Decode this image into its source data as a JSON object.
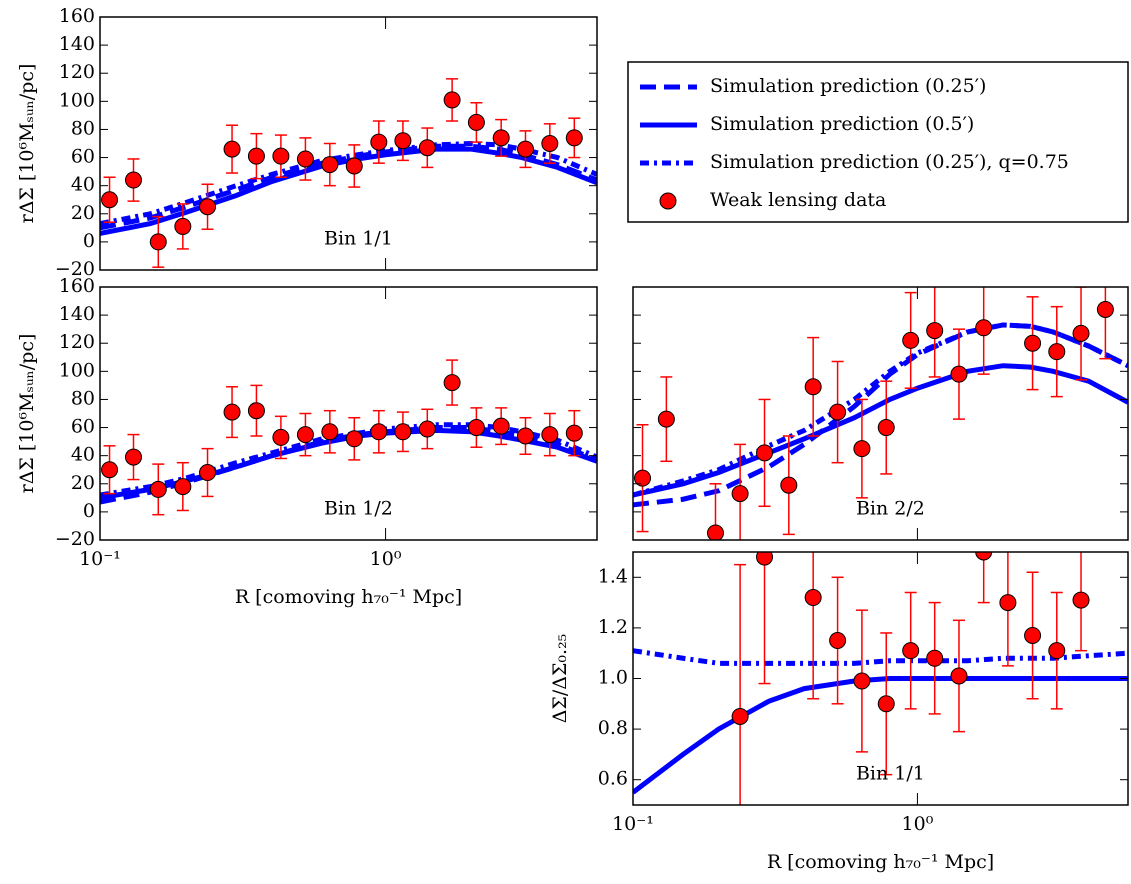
{
  "chart_data": [
    {
      "type": "line",
      "text": "Bin 1/1",
      "ylabel": "rΔΣ [10⁶Mₛᵤₙ/pc]",
      "log_x": true,
      "xlim": [
        0.1,
        5.5
      ],
      "xticks": [
        {
          "value": 0.1,
          "label": "10⁻¹"
        },
        {
          "value": 1,
          "label": "10⁰"
        }
      ],
      "show_xtick_labels": false,
      "ylim": [
        -20,
        160
      ],
      "yticks": [
        {
          "value": -20,
          "label": "−20"
        },
        0,
        20,
        40,
        60,
        80,
        100,
        120,
        140,
        160
      ],
      "show_ytick_labels": true,
      "series": [
        {
          "name": "Simulation prediction (0.25′)",
          "color": "#0000ff",
          "style": "dashed",
          "x": [
            0.1,
            0.15,
            0.2,
            0.3,
            0.4,
            0.6,
            0.8,
            1,
            1.5,
            2,
            2.5,
            3,
            4,
            5.5
          ],
          "values": [
            10,
            17,
            25,
            37,
            46,
            56,
            61,
            64,
            68,
            68,
            66,
            62,
            55,
            44
          ]
        },
        {
          "name": "Simulation prediction (0.5′)",
          "color": "#0000ff",
          "style": "solid",
          "x": [
            0.1,
            0.15,
            0.2,
            0.3,
            0.4,
            0.6,
            0.8,
            1,
            1.5,
            2,
            2.5,
            3,
            4,
            5.5
          ],
          "values": [
            6,
            13,
            21,
            33,
            43,
            54,
            59,
            62,
            66,
            66,
            63,
            60,
            53,
            42
          ]
        },
        {
          "name": "Simulation prediction (0.25′), q=0.75",
          "color": "#0000ff",
          "style": "dashdot",
          "x": [
            0.1,
            0.15,
            0.2,
            0.3,
            0.4,
            0.6,
            0.8,
            1,
            1.5,
            2,
            2.5,
            3,
            4,
            5.5
          ],
          "values": [
            13,
            20,
            28,
            40,
            48,
            58,
            62,
            65,
            69,
            70,
            69,
            66,
            60,
            48
          ]
        }
      ],
      "points": {
        "name": "Weak lensing data",
        "color": "#ff0000",
        "x": [
          0.108,
          0.131,
          0.16,
          0.195,
          0.238,
          0.29,
          0.353,
          0.43,
          0.524,
          0.638,
          0.777,
          0.947,
          1.15,
          1.4,
          1.71,
          2.08,
          2.54,
          3.09,
          3.76,
          4.58
        ],
        "values": [
          30,
          44,
          0,
          11,
          25,
          66,
          61,
          61,
          59,
          55,
          54,
          71,
          72,
          67,
          101,
          85,
          74,
          66,
          70,
          74
        ],
        "errors": [
          16,
          15,
          18,
          16,
          16,
          17,
          16,
          15,
          15,
          15,
          15,
          15,
          14,
          14,
          15,
          14,
          13,
          13,
          14,
          14
        ]
      }
    },
    {
      "type": "line",
      "text": "Bin 1/2",
      "ylabel": "rΔΣ [10⁶Mₛᵤₙ/pc]",
      "xlabel": "R [comoving h₇₀⁻¹ Mpc]",
      "log_x": true,
      "xlim": [
        0.1,
        5.5
      ],
      "xticks": [
        {
          "value": 0.1,
          "label": "10⁻¹"
        },
        {
          "value": 1,
          "label": "10⁰"
        }
      ],
      "show_xtick_labels": true,
      "ylim": [
        -20,
        160
      ],
      "yticks": [
        {
          "value": -20,
          "label": "−20"
        },
        0,
        20,
        40,
        60,
        80,
        100,
        120,
        140,
        160
      ],
      "show_ytick_labels": true,
      "series": [
        {
          "name": "Simulation prediction (0.25′)",
          "color": "#0000ff",
          "style": "dashed",
          "x": [
            0.1,
            0.15,
            0.2,
            0.3,
            0.4,
            0.6,
            0.8,
            1,
            1.5,
            2,
            2.5,
            3,
            4,
            5.5
          ],
          "values": [
            7,
            14,
            21,
            32,
            40,
            50,
            55,
            57,
            60,
            60,
            57,
            54,
            48,
            37
          ]
        },
        {
          "name": "Simulation prediction (0.5′)",
          "color": "#0000ff",
          "style": "solid",
          "x": [
            0.1,
            0.15,
            0.2,
            0.3,
            0.4,
            0.6,
            0.8,
            1,
            1.5,
            2,
            2.5,
            3,
            4,
            5.5
          ],
          "values": [
            10,
            16,
            22,
            32,
            40,
            49,
            54,
            56,
            58,
            57,
            54,
            51,
            46,
            36
          ]
        },
        {
          "name": "Simulation prediction (0.25′), q=0.75",
          "color": "#0000ff",
          "style": "dashdot",
          "x": [
            0.1,
            0.15,
            0.2,
            0.3,
            0.4,
            0.6,
            0.8,
            1,
            1.5,
            2,
            2.5,
            3,
            4,
            5.5
          ],
          "values": [
            12,
            18,
            24,
            35,
            42,
            52,
            56,
            59,
            62,
            62,
            60,
            57,
            51,
            39
          ]
        }
      ],
      "points": {
        "name": "Weak lensing data",
        "color": "#ff0000",
        "x": [
          0.108,
          0.131,
          0.16,
          0.195,
          0.238,
          0.29,
          0.353,
          0.43,
          0.524,
          0.638,
          0.777,
          0.947,
          1.15,
          1.4,
          1.71,
          2.08,
          2.54,
          3.09,
          3.76,
          4.58
        ],
        "values": [
          30,
          39,
          16,
          18,
          28,
          71,
          72,
          53,
          55,
          57,
          52,
          57,
          57,
          59,
          92,
          60,
          61,
          54,
          55,
          56
        ],
        "errors": [
          17,
          16,
          18,
          17,
          17,
          18,
          18,
          15,
          15,
          15,
          15,
          15,
          14,
          14,
          16,
          14,
          13,
          13,
          15,
          16
        ]
      }
    },
    {
      "type": "line",
      "text": "Bin 2/2",
      "log_x": true,
      "xlim": [
        0.1,
        5.5
      ],
      "xticks": [
        {
          "value": 0.1,
          "label": "10⁻¹"
        },
        {
          "value": 1,
          "label": "10⁰"
        }
      ],
      "show_xtick_labels": false,
      "ylim": [
        -20,
        160
      ],
      "yticks": [
        {
          "value": -20,
          "label": "−20"
        },
        0,
        20,
        40,
        60,
        80,
        100,
        120,
        140,
        160
      ],
      "show_ytick_labels": false,
      "series": [
        {
          "name": "Simulation prediction (0.25′)",
          "color": "#0000ff",
          "style": "dashed",
          "x": [
            0.1,
            0.15,
            0.2,
            0.3,
            0.4,
            0.6,
            0.8,
            1,
            1.5,
            2,
            2.5,
            3,
            4,
            5.5
          ],
          "values": [
            5,
            9,
            15,
            32,
            48,
            75,
            98,
            112,
            128,
            133,
            132,
            128,
            118,
            104
          ]
        },
        {
          "name": "Simulation prediction (0.5′)",
          "color": "#0000ff",
          "style": "solid",
          "x": [
            0.1,
            0.15,
            0.2,
            0.3,
            0.4,
            0.6,
            0.8,
            1,
            1.5,
            2,
            2.5,
            3,
            4,
            5.5
          ],
          "values": [
            12,
            20,
            28,
            42,
            52,
            67,
            80,
            88,
            100,
            104,
            103,
            100,
            93,
            78
          ]
        },
        {
          "name": "Simulation prediction (0.25′), q=0.75",
          "color": "#0000ff",
          "style": "dashdot",
          "x": [
            0.1,
            0.15,
            0.2,
            0.3,
            0.4,
            0.6,
            0.8,
            1,
            1.5,
            2,
            2.5,
            3,
            4,
            5.5
          ],
          "values": [
            12,
            22,
            30,
            47,
            58,
            80,
            100,
            113,
            128,
            133,
            132,
            128,
            118,
            104
          ]
        }
      ],
      "points": {
        "name": "Weak lensing data",
        "color": "#ff0000",
        "x": [
          0.108,
          0.131,
          0.195,
          0.238,
          0.29,
          0.353,
          0.43,
          0.524,
          0.638,
          0.777,
          0.947,
          1.15,
          1.4,
          1.71,
          2.54,
          3.09,
          3.76,
          4.58
        ],
        "values": [
          24,
          66,
          -15,
          13,
          42,
          19,
          89,
          71,
          45,
          60,
          122,
          129,
          98,
          131,
          120,
          114,
          127,
          144
        ],
        "errors": [
          38,
          30,
          35,
          35,
          38,
          35,
          35,
          36,
          35,
          33,
          34,
          33,
          32,
          33,
          33,
          32,
          33,
          35
        ]
      }
    },
    {
      "type": "line",
      "text": "Bin 1/1",
      "ylabel": "ΔΣ/ΔΣ₀.₂₅",
      "xlabel": "R [comoving h₇₀⁻¹ Mpc]",
      "log_x": true,
      "xlim": [
        0.1,
        5.5
      ],
      "xticks": [
        {
          "value": 0.1,
          "label": "10⁻¹"
        },
        {
          "value": 1,
          "label": "10⁰"
        }
      ],
      "show_xtick_labels": true,
      "ylim": [
        0.5,
        1.5
      ],
      "yticks": [
        0.6,
        0.8,
        {
          "value": 1,
          "label": "1.0"
        },
        1.2,
        1.4
      ],
      "show_ytick_labels": true,
      "series": [
        {
          "name": "Simulation prediction (0.5′)",
          "color": "#0000ff",
          "style": "solid",
          "x": [
            0.1,
            0.15,
            0.2,
            0.3,
            0.4,
            0.6,
            0.8,
            1,
            1.5,
            2,
            2.5,
            3,
            4,
            5.5
          ],
          "values": [
            0.55,
            0.7,
            0.8,
            0.91,
            0.96,
            0.99,
            1.0,
            1.0,
            1.0,
            1.0,
            1.0,
            1.0,
            1.0,
            1.0
          ]
        },
        {
          "name": "Simulation prediction (0.25′), q=0.75",
          "color": "#0000ff",
          "style": "dashdot",
          "x": [
            0.1,
            0.15,
            0.2,
            0.3,
            0.4,
            0.6,
            0.8,
            1,
            1.5,
            2,
            2.5,
            3,
            4,
            5.5
          ],
          "values": [
            1.11,
            1.08,
            1.06,
            1.06,
            1.06,
            1.06,
            1.07,
            1.07,
            1.07,
            1.08,
            1.08,
            1.08,
            1.09,
            1.1
          ]
        }
      ],
      "points": {
        "name": "Weak lensing data",
        "color": "#ff0000",
        "x": [
          0.238,
          0.29,
          0.43,
          0.524,
          0.638,
          0.777,
          0.947,
          1.15,
          1.4,
          1.71,
          2.08,
          2.54,
          3.09,
          3.76
        ],
        "values": [
          0.85,
          1.48,
          1.32,
          1.15,
          0.99,
          0.9,
          1.11,
          1.08,
          1.01,
          1.5,
          1.3,
          1.17,
          1.11,
          1.31
        ],
        "errors": [
          0.6,
          0.5,
          0.4,
          0.25,
          0.28,
          0.28,
          0.23,
          0.22,
          0.22,
          0.2,
          0.25,
          0.25,
          0.23,
          0.2
        ]
      }
    }
  ]
}
